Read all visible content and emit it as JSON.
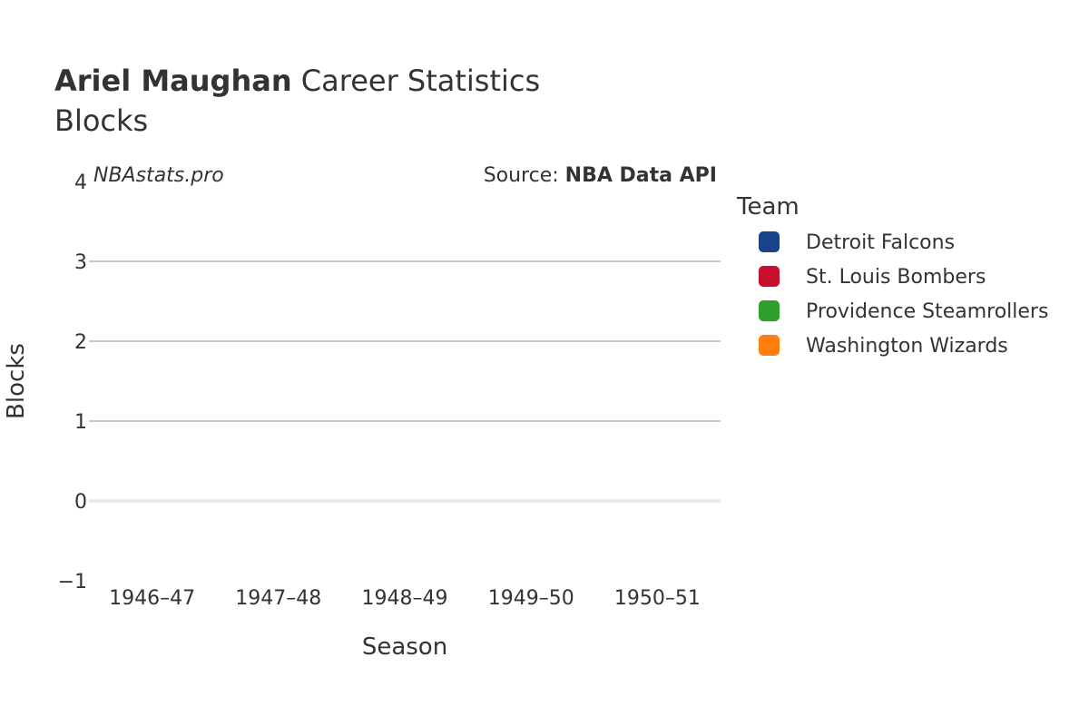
{
  "header": {
    "player_name": "Ariel Maughan",
    "title_rest": " Career Statistics",
    "subtitle": "Blocks"
  },
  "watermark": "NBAstats.pro",
  "source": {
    "prefix": "Source: ",
    "name": "NBA Data API"
  },
  "legend": {
    "title": "Team",
    "items": [
      {
        "label": "Detroit Falcons",
        "color": "#1a428a"
      },
      {
        "label": "St. Louis Bombers",
        "color": "#c8102e"
      },
      {
        "label": "Providence Steamrollers",
        "color": "#2ca02c"
      },
      {
        "label": "Washington Wizards",
        "color": "#ff7f0e"
      }
    ]
  },
  "chart_data": {
    "type": "line",
    "title": "Ariel Maughan Career Statistics",
    "subtitle": "Blocks",
    "xlabel": "Season",
    "ylabel": "Blocks",
    "categories": [
      "1946–47",
      "1947–48",
      "1948–49",
      "1949–50",
      "1950–51"
    ],
    "ylim": [
      -1,
      4
    ],
    "yticks": [
      -1,
      0,
      1,
      2,
      3,
      4
    ],
    "ytick_labels": [
      "−1",
      "0",
      "1",
      "2",
      "3",
      "4"
    ],
    "grid": true,
    "legend_position": "right",
    "series": []
  }
}
